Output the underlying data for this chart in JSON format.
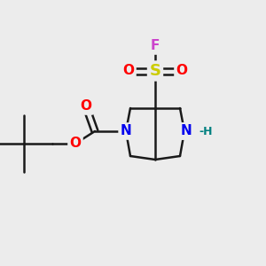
{
  "bg_color": "#ececec",
  "bond_color": "#1a1a1a",
  "bond_width": 1.8,
  "figsize": [
    3.0,
    3.0
  ],
  "dpi": 100,
  "colors": {
    "N": "#0000ee",
    "H": "#008080",
    "S": "#cccc00",
    "F": "#cc44cc",
    "O": "#ff0000",
    "bond": "#1a1a1a"
  },
  "label_fontsize": 11,
  "small_fontsize": 9
}
